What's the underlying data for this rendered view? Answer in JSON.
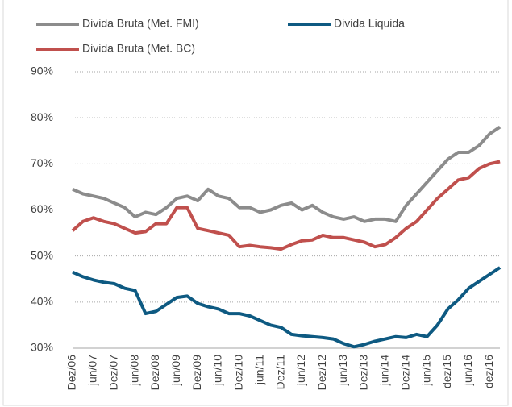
{
  "chart_data": {
    "type": "line",
    "categories": [
      "Dez/06",
      null,
      "jun/07",
      null,
      "Dez/07",
      null,
      "jun/08",
      null,
      "Dez/08",
      null,
      "jun/09",
      null,
      "Dez/09",
      null,
      "jun/10",
      null,
      "Dez/10",
      null,
      "jun/11",
      null,
      "Dez/11",
      null,
      "jun/12",
      null,
      "Dez/12",
      null,
      "jun/13",
      null,
      "Dez/13",
      null,
      "jun/14",
      null,
      "Dez/14",
      null,
      "jun/15",
      null,
      "dez/15",
      null,
      "jun/16",
      null,
      "dez/16",
      null
    ],
    "series": [
      {
        "name": "Divida Bruta (Met. FMI)",
        "color": "#8c8c8c",
        "values": [
          64.5,
          63.5,
          63,
          62.5,
          61.5,
          60.5,
          58.5,
          59.5,
          59,
          60.5,
          62.5,
          63,
          62,
          64.5,
          63,
          62.5,
          60.5,
          60.5,
          59.5,
          60,
          61,
          61.5,
          60,
          61,
          59.5,
          58.5,
          58,
          58.5,
          57.5,
          58,
          58,
          57.5,
          61,
          63.5,
          66,
          68.5,
          71,
          72.5,
          72.5,
          74,
          76.5,
          78
        ]
      },
      {
        "name": "Divida Liquida",
        "color": "#0e5a82",
        "values": [
          46.5,
          45.5,
          44.8,
          44.3,
          44,
          43,
          42.5,
          37.5,
          38,
          39.5,
          41,
          41.3,
          39.7,
          39,
          38.5,
          37.5,
          37.5,
          37,
          36,
          35,
          34.5,
          33,
          32.7,
          32.5,
          32.3,
          32,
          31,
          30.3,
          30.8,
          31.5,
          32,
          32.5,
          32.3,
          33,
          32.5,
          35,
          38.5,
          40.5,
          43,
          44.5,
          46,
          47.5
        ]
      },
      {
        "name": "Divida Bruta (Met. BC)",
        "color": "#c0504d",
        "values": [
          55.5,
          57.5,
          58.3,
          57.5,
          57,
          56,
          55,
          55.3,
          57,
          57,
          60.5,
          60.5,
          56,
          55.5,
          55,
          54.5,
          52,
          52.3,
          52,
          51.8,
          51.5,
          52.5,
          53.3,
          53.5,
          54.5,
          54,
          54,
          53.5,
          53,
          52,
          52.5,
          54,
          56,
          57.5,
          60,
          62.5,
          64.5,
          66.5,
          67,
          69,
          70,
          70.5
        ]
      }
    ],
    "ylim": [
      30,
      90
    ],
    "yticks": [
      {
        "value": 30,
        "label": "30%"
      },
      {
        "value": 40,
        "label": "40%"
      },
      {
        "value": 50,
        "label": "50%"
      },
      {
        "value": 60,
        "label": "60%"
      },
      {
        "value": 70,
        "label": "70%"
      },
      {
        "value": 80,
        "label": "80%"
      },
      {
        "value": 90,
        "label": "90%"
      }
    ],
    "grid": true
  }
}
